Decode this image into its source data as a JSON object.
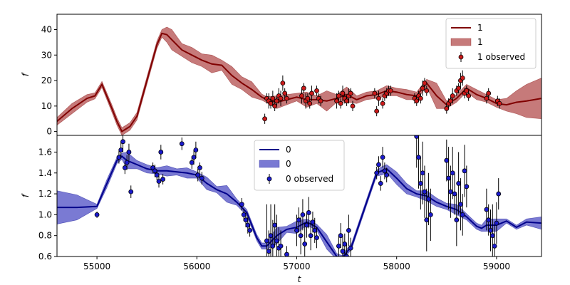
{
  "chart_data": [
    {
      "type": "line",
      "panel": "top",
      "ylabel": "f",
      "xlim": [
        54600,
        59450
      ],
      "ylim": [
        -1.5,
        46
      ],
      "yticks": [
        0,
        10,
        20,
        30,
        40
      ],
      "legend_placement": "upper-right",
      "legend": [
        "1",
        "1",
        "1 observed"
      ],
      "colors": {
        "line": "#800000",
        "band": "#b34d4d",
        "point": "#cc1a1a",
        "errbar": "#000000"
      },
      "series": [
        {
          "name": "1",
          "kind": "model",
          "x": [
            54600,
            54750,
            54900,
            54980,
            55050,
            55150,
            55200,
            55250,
            55330,
            55400,
            55500,
            55600,
            55650,
            55700,
            55750,
            55850,
            55950,
            56050,
            56150,
            56250,
            56350,
            56450,
            56550,
            56650,
            56700,
            56800,
            56900,
            57000,
            57100,
            57200,
            57300,
            57400,
            57500,
            57600,
            57700,
            57800,
            57900,
            58000,
            58100,
            58200,
            58300,
            58400,
            58500,
            58600,
            58700,
            58800,
            58900,
            59000,
            59100,
            59200,
            59300,
            59450
          ],
          "y": [
            4,
            9,
            13,
            14,
            18.5,
            9,
            4,
            0,
            2,
            6,
            20,
            34,
            38.5,
            38,
            36,
            32,
            30,
            28,
            26.5,
            26,
            22,
            19,
            16.5,
            13.5,
            12.5,
            11.5,
            12.5,
            13.5,
            12.5,
            12.5,
            12,
            13,
            14.5,
            12.5,
            14,
            14.5,
            16,
            15.5,
            14.5,
            14,
            19,
            14,
            10.5,
            13,
            17,
            14.5,
            13,
            11,
            10.5,
            11.5,
            12,
            13
          ],
          "band": [
            1.5,
            2,
            1.5,
            1.2,
            1.2,
            1.5,
            1.5,
            1.5,
            1.5,
            1.5,
            1.5,
            1.5,
            1.5,
            3,
            4,
            2.5,
            3,
            2.5,
            3.5,
            2,
            3.5,
            2.5,
            3,
            1.2,
            1.2,
            2.5,
            2,
            1.5,
            3,
            1.5,
            4,
            1.5,
            3,
            1.5,
            1.5,
            1.5,
            2,
            1.5,
            2,
            1.5,
            1.5,
            5,
            1.5,
            1.5,
            1.5,
            2,
            1.5,
            1.5,
            2.5,
            4.5,
            6.5,
            8
          ]
        },
        {
          "name": "1 observed",
          "kind": "observed",
          "x": [
            56680,
            56700,
            56720,
            56740,
            56760,
            56780,
            56800,
            56820,
            56840,
            56860,
            56880,
            56900,
            57050,
            57070,
            57090,
            57110,
            57130,
            57150,
            57200,
            57220,
            57240,
            57400,
            57420,
            57440,
            57460,
            57480,
            57500,
            57520,
            57540,
            57560,
            57780,
            57800,
            57820,
            57860,
            57880,
            57900,
            57920,
            57940,
            58180,
            58200,
            58220,
            58240,
            58260,
            58280,
            58300,
            58500,
            58520,
            58540,
            58560,
            58600,
            58620,
            58640,
            58660,
            58680,
            58700,
            58720,
            58900,
            58920,
            59010,
            59030
          ],
          "y": [
            5,
            13,
            12,
            11,
            13,
            10,
            12,
            14,
            13,
            19,
            15,
            13,
            14,
            17,
            12,
            13,
            11,
            15,
            16,
            13,
            12,
            12,
            14,
            11,
            15,
            13,
            12,
            14,
            15,
            10,
            15,
            8,
            13,
            11,
            14,
            15,
            16,
            16,
            13,
            12,
            14,
            13,
            17,
            19,
            16,
            9,
            11,
            12,
            14,
            16,
            17,
            20,
            21,
            15,
            16,
            14,
            13,
            15,
            12,
            11
          ],
          "err": [
            2,
            2,
            3,
            2,
            3,
            2,
            2,
            3,
            3,
            3,
            2,
            2,
            3,
            2,
            3,
            2,
            2,
            3,
            2,
            2,
            2,
            3,
            2,
            2,
            3,
            2,
            2,
            3,
            2,
            2,
            2,
            2,
            3,
            2,
            2,
            2,
            2,
            2,
            2,
            2,
            2,
            2,
            3,
            2,
            2,
            2,
            2,
            2,
            3,
            2,
            2,
            3,
            3,
            2,
            2,
            2,
            2,
            2,
            2,
            2
          ]
        }
      ]
    },
    {
      "type": "line",
      "panel": "bottom",
      "xlabel": "t",
      "ylabel": "f",
      "xlim": [
        54600,
        59450
      ],
      "ylim": [
        0.6,
        1.76
      ],
      "xticks": [
        55000,
        56000,
        57000,
        58000,
        59000
      ],
      "yticks": [
        0.6,
        0.8,
        1.0,
        1.2,
        1.4,
        1.6
      ],
      "ytick_labels": [
        "0.6",
        "0.8",
        "1.0",
        "1.2",
        "1.4",
        "1.6"
      ],
      "legend_placement": "upper-center",
      "legend": [
        "0",
        "0",
        "0 observed"
      ],
      "colors": {
        "line": "#00008b",
        "band": "#4d4dc4",
        "point": "#1a1acc",
        "errbar": "#000000"
      },
      "series": [
        {
          "name": "0",
          "kind": "model",
          "x": [
            54600,
            54800,
            55000,
            55100,
            55200,
            55250,
            55300,
            55400,
            55450,
            55500,
            55600,
            55700,
            55800,
            55900,
            56000,
            56100,
            56200,
            56300,
            56400,
            56500,
            56550,
            56600,
            56650,
            56700,
            56800,
            56900,
            57000,
            57100,
            57200,
            57300,
            57400,
            57450,
            57500,
            57550,
            57650,
            57700,
            57800,
            57850,
            57900,
            58000,
            58100,
            58200,
            58300,
            58400,
            58500,
            58600,
            58700,
            58800,
            58850,
            58900,
            59000,
            59100,
            59200,
            59300,
            59450
          ],
          "y": [
            1.07,
            1.07,
            1.08,
            1.3,
            1.52,
            1.56,
            1.52,
            1.48,
            1.46,
            1.44,
            1.42,
            1.42,
            1.41,
            1.4,
            1.38,
            1.3,
            1.24,
            1.2,
            1.12,
            1.02,
            0.9,
            0.78,
            0.7,
            0.7,
            0.8,
            0.86,
            0.88,
            0.93,
            0.88,
            0.74,
            0.6,
            0.58,
            0.64,
            0.7,
            0.98,
            1.12,
            1.4,
            1.42,
            1.44,
            1.35,
            1.25,
            1.2,
            1.18,
            1.12,
            1.08,
            1.05,
            0.98,
            0.89,
            0.87,
            0.9,
            0.9,
            0.94,
            0.88,
            0.93,
            0.92
          ],
          "band": [
            0.16,
            0.12,
            0.02,
            0.04,
            0.03,
            0.03,
            0.08,
            0.04,
            0.04,
            0.04,
            0.03,
            0.05,
            0.03,
            0.05,
            0.03,
            0.06,
            0.03,
            0.08,
            0.03,
            0.03,
            0.03,
            0.03,
            0.03,
            0.03,
            0.08,
            0.03,
            0.06,
            0.03,
            0.03,
            0.07,
            0.03,
            0.03,
            0.03,
            0.03,
            0.03,
            0.03,
            0.03,
            0.04,
            0.04,
            0.06,
            0.05,
            0.03,
            0.05,
            0.04,
            0.03,
            0.05,
            0.03,
            0.03,
            0.03,
            0.06,
            0.06,
            0.02,
            0.02,
            0.03,
            0.06
          ]
        },
        {
          "name": "0 observed",
          "kind": "observed",
          "x": [
            55000,
            55220,
            55240,
            55260,
            55280,
            55300,
            55320,
            55340,
            55560,
            55580,
            55600,
            55620,
            55640,
            55660,
            55850,
            55950,
            55970,
            55990,
            56010,
            56030,
            56050,
            56450,
            56470,
            56490,
            56510,
            56530,
            56700,
            56720,
            56740,
            56760,
            56780,
            56800,
            56820,
            56840,
            56900,
            57000,
            57020,
            57040,
            57060,
            57080,
            57100,
            57120,
            57140,
            57160,
            57180,
            57200,
            57420,
            57440,
            57460,
            57480,
            57500,
            57520,
            57540,
            57800,
            57820,
            57840,
            57860,
            57880,
            57900,
            58200,
            58220,
            58240,
            58260,
            58280,
            58300,
            58320,
            58340,
            58500,
            58520,
            58540,
            58560,
            58580,
            58600,
            58620,
            58640,
            58660,
            58680,
            58700,
            58900,
            58920,
            58940,
            58960,
            58980,
            59000,
            59020
          ],
          "y": [
            1.0,
            1.55,
            1.62,
            1.7,
            1.45,
            1.5,
            1.6,
            1.22,
            1.45,
            1.42,
            1.38,
            1.32,
            1.6,
            1.34,
            1.68,
            1.5,
            1.55,
            1.62,
            1.38,
            1.45,
            1.35,
            1.1,
            1.0,
            0.95,
            0.9,
            0.85,
            0.75,
            0.65,
            0.8,
            0.7,
            0.9,
            0.75,
            0.68,
            0.7,
            0.62,
            0.85,
            0.95,
            0.8,
            1.0,
            0.72,
            0.9,
            1.02,
            0.8,
            0.93,
            0.85,
            0.78,
            0.7,
            0.8,
            0.65,
            0.72,
            0.6,
            0.85,
            0.68,
            1.4,
            1.48,
            1.3,
            1.55,
            1.42,
            1.38,
            1.75,
            1.55,
            1.3,
            1.4,
            1.22,
            0.95,
            1.15,
            1.0,
            1.52,
            1.35,
            1.22,
            1.4,
            1.2,
            0.95,
            1.3,
            1.1,
            1.0,
            1.42,
            1.27,
            1.05,
            0.95,
            0.85,
            0.8,
            0.7,
            0.92,
            1.2
          ],
          "err": [
            0.03,
            0.06,
            0.08,
            0.1,
            0.06,
            0.07,
            0.08,
            0.06,
            0.05,
            0.06,
            0.05,
            0.06,
            0.07,
            0.05,
            0.06,
            0.06,
            0.07,
            0.08,
            0.06,
            0.05,
            0.06,
            0.06,
            0.06,
            0.07,
            0.08,
            0.06,
            0.35,
            0.2,
            0.3,
            0.25,
            0.2,
            0.25,
            0.2,
            0.15,
            0.08,
            0.15,
            0.12,
            0.18,
            0.15,
            0.2,
            0.12,
            0.15,
            0.14,
            0.1,
            0.12,
            0.1,
            0.1,
            0.12,
            0.15,
            0.1,
            0.12,
            0.15,
            0.1,
            0.06,
            0.08,
            0.07,
            0.1,
            0.08,
            0.07,
            0.3,
            0.3,
            0.25,
            0.3,
            0.25,
            0.3,
            0.25,
            0.25,
            0.2,
            0.3,
            0.25,
            0.25,
            0.2,
            0.25,
            0.3,
            0.25,
            0.2,
            0.25,
            0.2,
            0.2,
            0.15,
            0.2,
            0.3,
            0.2,
            0.2,
            0.15
          ]
        }
      ]
    }
  ]
}
